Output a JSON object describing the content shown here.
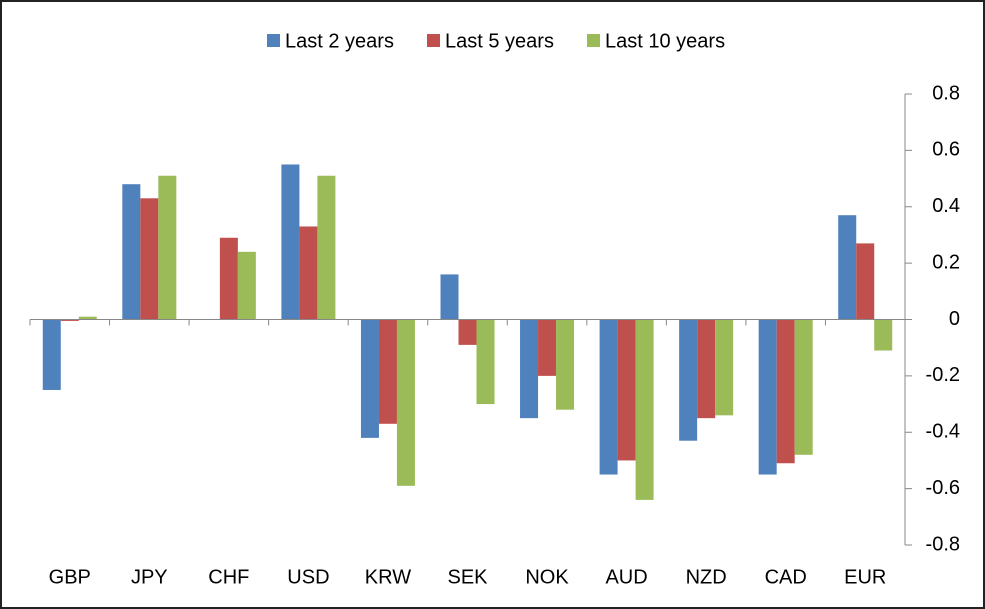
{
  "chart_data": {
    "type": "bar",
    "categories": [
      "GBP",
      "JPY",
      "CHF",
      "USD",
      "KRW",
      "SEK",
      "NOK",
      "AUD",
      "NZD",
      "CAD",
      "EUR"
    ],
    "series": [
      {
        "name": "Last 2 years",
        "color": "#4f81bd",
        "values": [
          -0.25,
          0.48,
          0,
          0.55,
          -0.42,
          0.16,
          -0.35,
          -0.55,
          -0.43,
          -0.55,
          0.37
        ]
      },
      {
        "name": "Last 5 years",
        "color": "#c0504d",
        "values": [
          -0.005,
          0.43,
          0.29,
          0.33,
          -0.37,
          -0.09,
          -0.2,
          -0.5,
          -0.35,
          -0.51,
          0.27
        ]
      },
      {
        "name": "Last 10 years",
        "color": "#9bbb59",
        "values": [
          0.01,
          0.51,
          0.24,
          0.51,
          -0.59,
          -0.3,
          -0.32,
          -0.64,
          -0.34,
          -0.48,
          -0.11
        ]
      }
    ],
    "ylim": [
      -0.8,
      0.8
    ],
    "yticks": [
      0.8,
      0.6,
      0.4,
      0.2,
      0,
      -0.2,
      -0.4,
      -0.6,
      -0.8
    ],
    "legend": "top"
  }
}
